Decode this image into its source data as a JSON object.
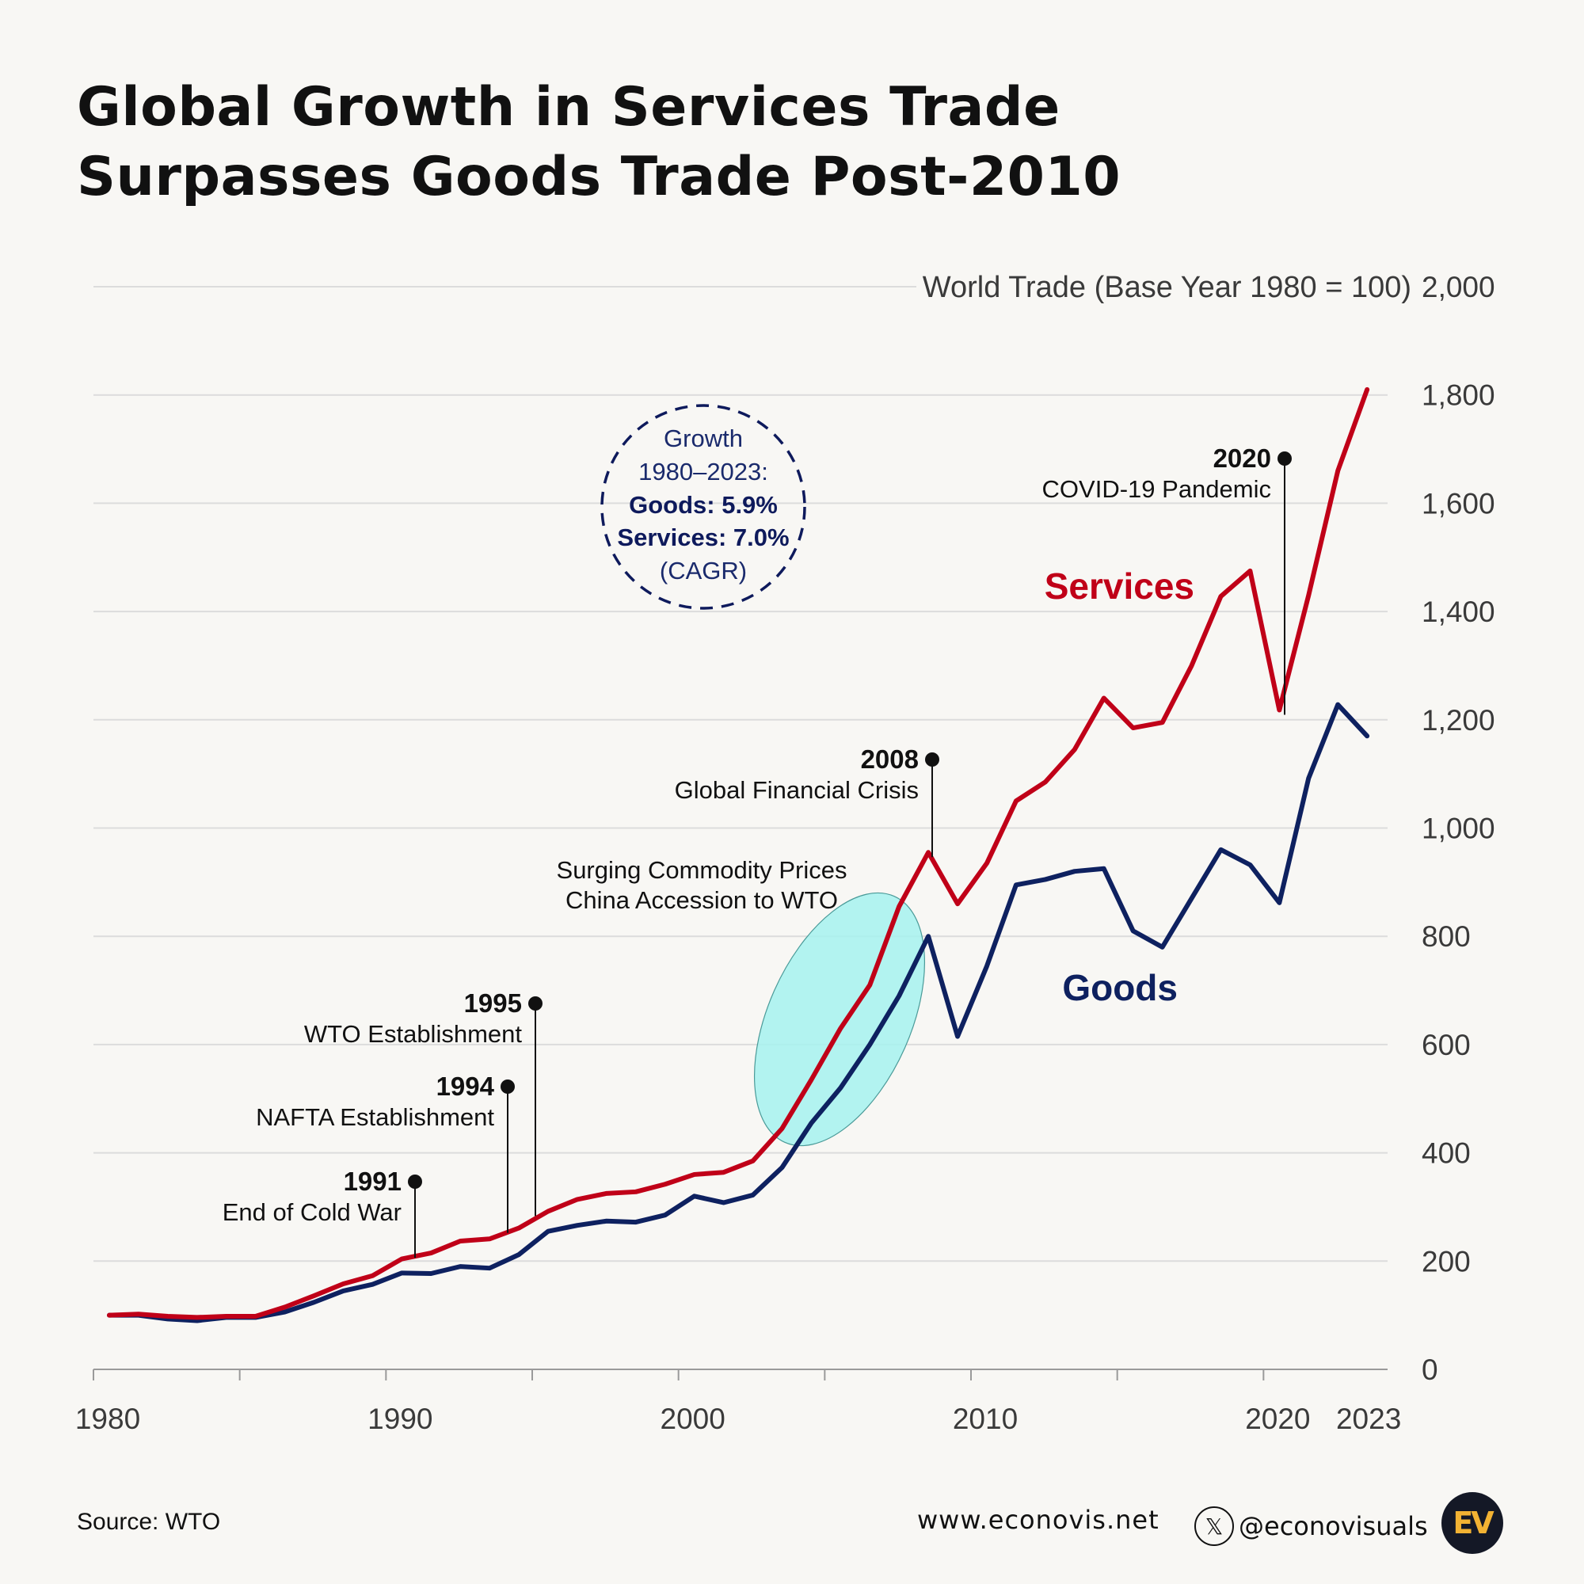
{
  "title": {
    "line1": "Global Growth in Services Trade",
    "line2": "Surpasses Goods Trade Post-2010"
  },
  "chart_data": {
    "type": "line",
    "title": "Global Growth in Services Trade Surpasses Goods Trade Post-2010",
    "ylabel": "World Trade (Base Year 1980 = 100)",
    "xlabel": "",
    "ylim": [
      0,
      2000
    ],
    "yticks": [
      "0",
      "200",
      "400",
      "600",
      "800",
      "1,000",
      "1,200",
      "1,400",
      "1,600",
      "1,800",
      "2,000"
    ],
    "ytick_values": [
      0,
      200,
      400,
      600,
      800,
      1000,
      1200,
      1400,
      1600,
      1800,
      2000
    ],
    "xticks": [
      "1980",
      "1990",
      "2000",
      "2010",
      "2020",
      "2023"
    ],
    "xtick_values": [
      1980,
      1990,
      2000,
      2010,
      2020,
      2023
    ],
    "x": [
      1980,
      1981,
      1982,
      1983,
      1984,
      1985,
      1986,
      1987,
      1988,
      1989,
      1990,
      1991,
      1992,
      1993,
      1994,
      1995,
      1996,
      1997,
      1998,
      1999,
      2000,
      2001,
      2002,
      2003,
      2004,
      2005,
      2006,
      2007,
      2008,
      2009,
      2010,
      2011,
      2012,
      2013,
      2014,
      2015,
      2016,
      2017,
      2018,
      2019,
      2020,
      2021,
      2022,
      2023
    ],
    "series": [
      {
        "name": "Services",
        "color": "#c00018",
        "values": [
          100,
          102,
          98,
          96,
          98,
          98,
          115,
          136,
          158,
          173,
          204,
          215,
          237,
          241,
          261,
          292,
          314,
          325,
          328,
          342,
          360,
          364,
          385,
          445,
          535,
          630,
          710,
          855,
          955,
          860,
          935,
          1050,
          1085,
          1145,
          1240,
          1185,
          1195,
          1300,
          1428,
          1475,
          1218,
          1430,
          1660,
          1810
        ]
      },
      {
        "name": "Goods",
        "color": "#0e2160",
        "values": [
          100,
          100,
          93,
          90,
          96,
          96,
          106,
          124,
          145,
          157,
          178,
          177,
          190,
          187,
          212,
          255,
          266,
          274,
          272,
          285,
          320,
          308,
          322,
          373,
          455,
          520,
          600,
          690,
          800,
          615,
          745,
          895,
          905,
          920,
          925,
          810,
          780,
          870,
          960,
          932,
          862,
          1092,
          1228,
          1170
        ]
      }
    ],
    "annotations": [
      {
        "year_label": "1991",
        "text": "End of Cold War",
        "x": 1991,
        "value": 215
      },
      {
        "year_label": "1994",
        "text": "NAFTA Establishment",
        "x": 1994,
        "value": 261
      },
      {
        "year_label": "1995",
        "text": "WTO Establishment",
        "x": 1995,
        "value": 292
      },
      {
        "year_label": "2008",
        "text": "Global Financial Crisis",
        "x": 2008,
        "value": 955
      },
      {
        "year_label": "2020",
        "text": "COVID-19 Pandemic",
        "x": 2020,
        "value": 1218
      }
    ],
    "highlight": {
      "line1": "Surging Commodity Prices",
      "line2": "China Accession to WTO",
      "color": "#a6f2ee"
    },
    "cagr_note": {
      "line1": "Growth",
      "line2": "1980–2023:",
      "line3": "Goods: 5.9%",
      "line4": "Services: 7.0%",
      "line5": "(CAGR)"
    }
  },
  "footer": {
    "source": "Source: WTO",
    "url": "www.econovis.net",
    "handle": "@econovisuals",
    "social_icon": "x-logo-icon",
    "logo_text": "EV"
  }
}
